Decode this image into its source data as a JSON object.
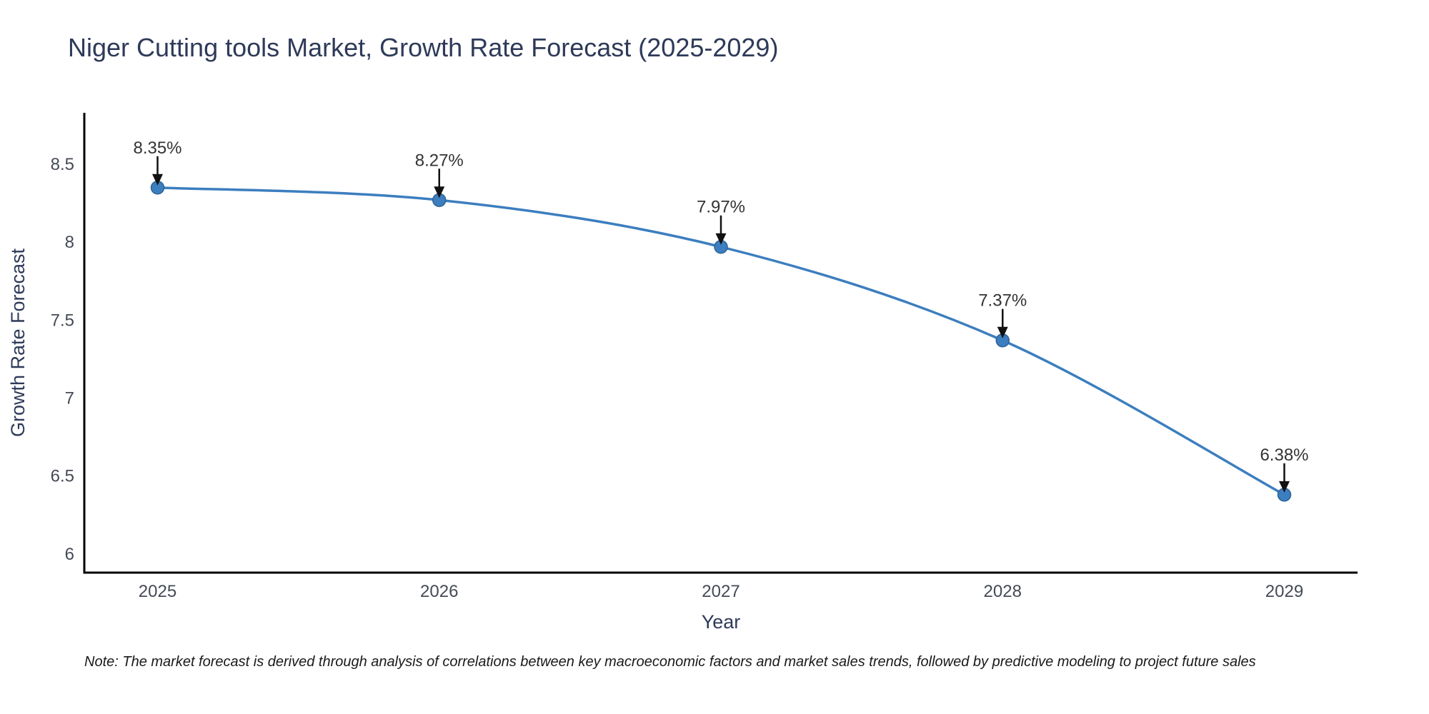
{
  "chart_data": {
    "type": "line",
    "title": "Niger Cutting tools Market, Growth Rate Forecast (2025-2029)",
    "xlabel": "Year",
    "ylabel": "Growth Rate Forecast",
    "x": [
      2025,
      2026,
      2027,
      2028,
      2029
    ],
    "series": [
      {
        "name": "Growth Rate Forecast",
        "values": [
          8.35,
          8.27,
          7.97,
          7.37,
          6.38
        ]
      }
    ],
    "point_labels": [
      "8.35%",
      "8.27%",
      "7.97%",
      "7.37%",
      "6.38%"
    ],
    "xtick_labels": [
      "2025",
      "2026",
      "2027",
      "2028",
      "2029"
    ],
    "yticks": [
      6,
      6.5,
      7,
      7.5,
      8,
      8.5
    ],
    "ytick_labels": [
      "6",
      "6.5",
      "7",
      "7.5",
      "8",
      "8.5"
    ],
    "xlim": [
      2024.74,
      2029.26
    ],
    "ylim": [
      5.88,
      8.83
    ],
    "grid": false,
    "legend": false,
    "line_shape": "spline",
    "colors": {
      "line": "#3c7ebf",
      "marker": "#3c7ebf",
      "marker_edge": "#2d6396",
      "axis": "#000000",
      "tick_label": "#444a55",
      "axis_title": "#2e3a59",
      "annotation_text": "#333333",
      "annotation_arrow": "#111111",
      "title": "#2e3a59",
      "background": "#ffffff"
    },
    "note": "Note: The market forecast is derived through analysis of correlations between key macroeconomic factors and market sales trends, followed by predictive modeling to project future sales"
  }
}
